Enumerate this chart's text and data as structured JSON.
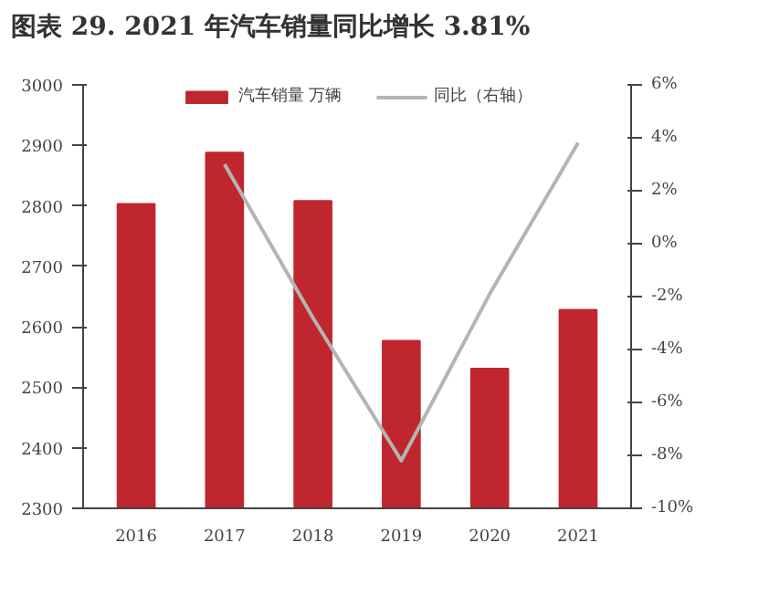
{
  "chart_data": {
    "type": "bar",
    "title": "图表 29. 2021 年汽车销量同比增长 3.81%",
    "categories": [
      "2016",
      "2017",
      "2018",
      "2019",
      "2020",
      "2021"
    ],
    "series": [
      {
        "name": "汽车销量 万辆",
        "color": "#c0262e",
        "values": [
          2803,
          2888,
          2808,
          2577,
          2531,
          2628
        ]
      },
      {
        "name": "同比（右轴）",
        "type": "line",
        "axis": "y2",
        "color": "#b4b4b4",
        "values": [
          null,
          3.0,
          -2.8,
          -8.2,
          -1.9,
          3.81
        ]
      }
    ],
    "ylim": [
      2300,
      3000
    ],
    "yticks": [
      2300,
      2400,
      2500,
      2600,
      2700,
      2800,
      2900,
      3000
    ],
    "y2lim": [
      -10,
      6
    ],
    "y2ticks": [
      {
        "value": -10,
        "label": "-10%"
      },
      {
        "value": -8,
        "label": "-8%"
      },
      {
        "value": -6,
        "label": "-6%"
      },
      {
        "value": -4,
        "label": "-4%"
      },
      {
        "value": -2,
        "label": "-2%"
      },
      {
        "value": 0,
        "label": "0%"
      },
      {
        "value": 2,
        "label": "2%"
      },
      {
        "value": 4,
        "label": "4%"
      },
      {
        "value": 6,
        "label": "6%"
      }
    ],
    "legend": "top",
    "grid": false
  }
}
